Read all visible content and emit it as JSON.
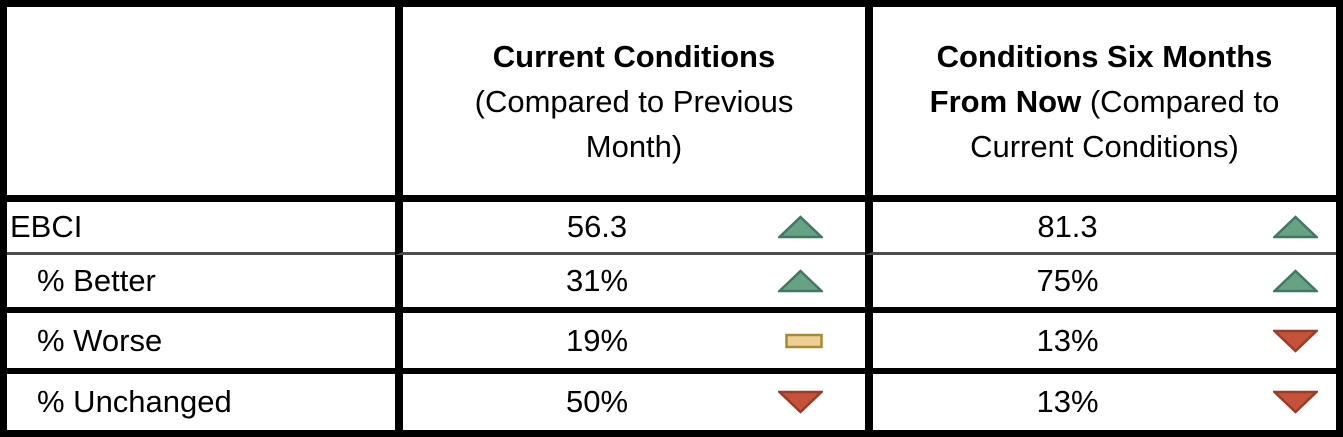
{
  "header": {
    "current": {
      "title_bold": "Current Conditions",
      "subtitle_line1": "(Compared to Previous",
      "subtitle_line2": "Month)"
    },
    "future": {
      "line1_bold": "Conditions Six Months",
      "line2_bold": "From Now",
      "line2_rest": " (Compared to",
      "line3": "Current Conditions)"
    }
  },
  "rows": [
    {
      "label": "EBCI",
      "current": {
        "value": "56.3",
        "indicator": "up"
      },
      "future": {
        "value": "81.3",
        "indicator": "up"
      }
    },
    {
      "label": "% Better",
      "current": {
        "value": "31%",
        "indicator": "up"
      },
      "future": {
        "value": "75%",
        "indicator": "up"
      }
    },
    {
      "label": "% Worse",
      "current": {
        "value": "19%",
        "indicator": "flat"
      },
      "future": {
        "value": "13%",
        "indicator": "down"
      }
    },
    {
      "label": "% Unchanged",
      "current": {
        "value": "50%",
        "indicator": "down"
      },
      "future": {
        "value": "13%",
        "indicator": "down"
      }
    }
  ],
  "colors": {
    "up": "#67A287",
    "up_border": "#3E7960",
    "down": "#C65239",
    "down_border": "#9C3B26",
    "flat": "#EDCE97",
    "flat_border": "#AA8A2B",
    "border": "#000000",
    "thin_separator": "#4d4d4d"
  },
  "chart_data": {
    "type": "table",
    "title": "EBCI summary table",
    "columns": [
      "",
      "Current Conditions (Compared to Previous Month)",
      "Conditions Six Months From Now (Compared to Current Conditions)"
    ],
    "row_labels": [
      "EBCI",
      "% Better",
      "% Worse",
      "% Unchanged"
    ],
    "series": [
      {
        "name": "Current Conditions (Compared to Previous Month)",
        "values": [
          56.3,
          "31%",
          "19%",
          "50%"
        ],
        "trend": [
          "up",
          "up",
          "flat",
          "down"
        ]
      },
      {
        "name": "Conditions Six Months From Now (Compared to Current Conditions)",
        "values": [
          81.3,
          "75%",
          "13%",
          "13%"
        ],
        "trend": [
          "up",
          "up",
          "down",
          "down"
        ]
      }
    ]
  }
}
